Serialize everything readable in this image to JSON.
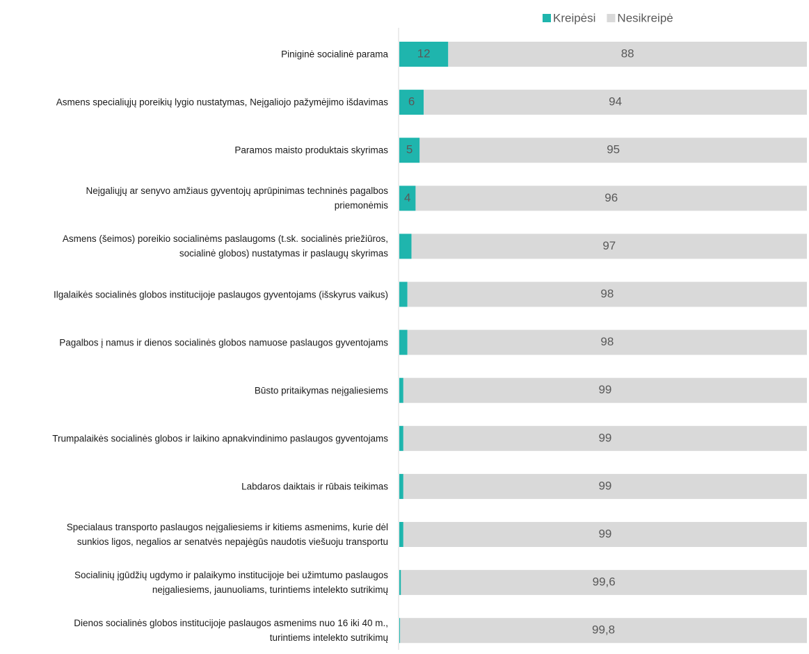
{
  "chart_data": {
    "type": "stacked-bar-horizontal",
    "categories": [
      "Piniginė socialinė parama",
      "Asmens specialiųjų poreikių lygio nustatymas, Neįgaliojo pažymėjimo išdavimas",
      "Paramos  maisto produktais skyrimas",
      "Neįgaliųjų ar senyvo amžiaus gyventojų aprūpinimas techninės pagalbos\npriemonėmis",
      "Asmens (šeimos) poreikio socialinėms paslaugoms (t.sk. socialinės priežiūros,\nsocialinė globos) nustatymas ir paslaugų skyrimas",
      "Ilgalaikės socialinės globos institucijoje paslaugos gyventojams (išskyrus vaikus)",
      "Pagalbos į namus ir dienos socialinės globos namuose paslaugos gyventojams",
      "Būsto pritaikymas neįgaliesiems",
      "Trumpalaikės socialinės globos ir laikino apnakvindinimo paslaugos gyventojams",
      "Labdaros daiktais ir rūbais teikimas",
      "Specialaus transporto paslaugos neįgaliesiems ir kitiems asmenims, kurie dėl\nsunkios ligos, negalios ar senatvės nepajėgūs naudotis viešuoju transportu",
      "Socialinių įgūdžių ugdymo ir palaikymo institucijoje bei užimtumo paslaugos\nneįgaliesiems, jaunuoliams, turintiems intelekto sutrikimų",
      "Dienos socialinės globos institucijoje paslaugos asmenims nuo 16 iki 40 m.,\nturintiems intelekto sutrikimų"
    ],
    "series": [
      {
        "name": "Kreipėsi",
        "color": "#1fb5ad",
        "values": [
          12,
          6,
          5,
          4,
          3,
          2,
          2,
          1,
          1,
          1,
          1,
          0.4,
          0.2
        ],
        "value_labels": [
          "12",
          "6",
          "5",
          "4",
          "3",
          "2",
          "2",
          "1",
          "1",
          "1",
          "1",
          "0,4",
          "0,2"
        ]
      },
      {
        "name": "Nesikreipė",
        "color": "#d9d9d9",
        "values": [
          88,
          94,
          95,
          96,
          97,
          98,
          98,
          99,
          99,
          99,
          99,
          99.6,
          99.8
        ],
        "value_labels": [
          "88",
          "94",
          "95",
          "96",
          "97",
          "98",
          "98",
          "99",
          "99",
          "99",
          "99",
          "99,6",
          "99,8"
        ]
      }
    ],
    "xlim": [
      0,
      100
    ],
    "legend": "top"
  }
}
